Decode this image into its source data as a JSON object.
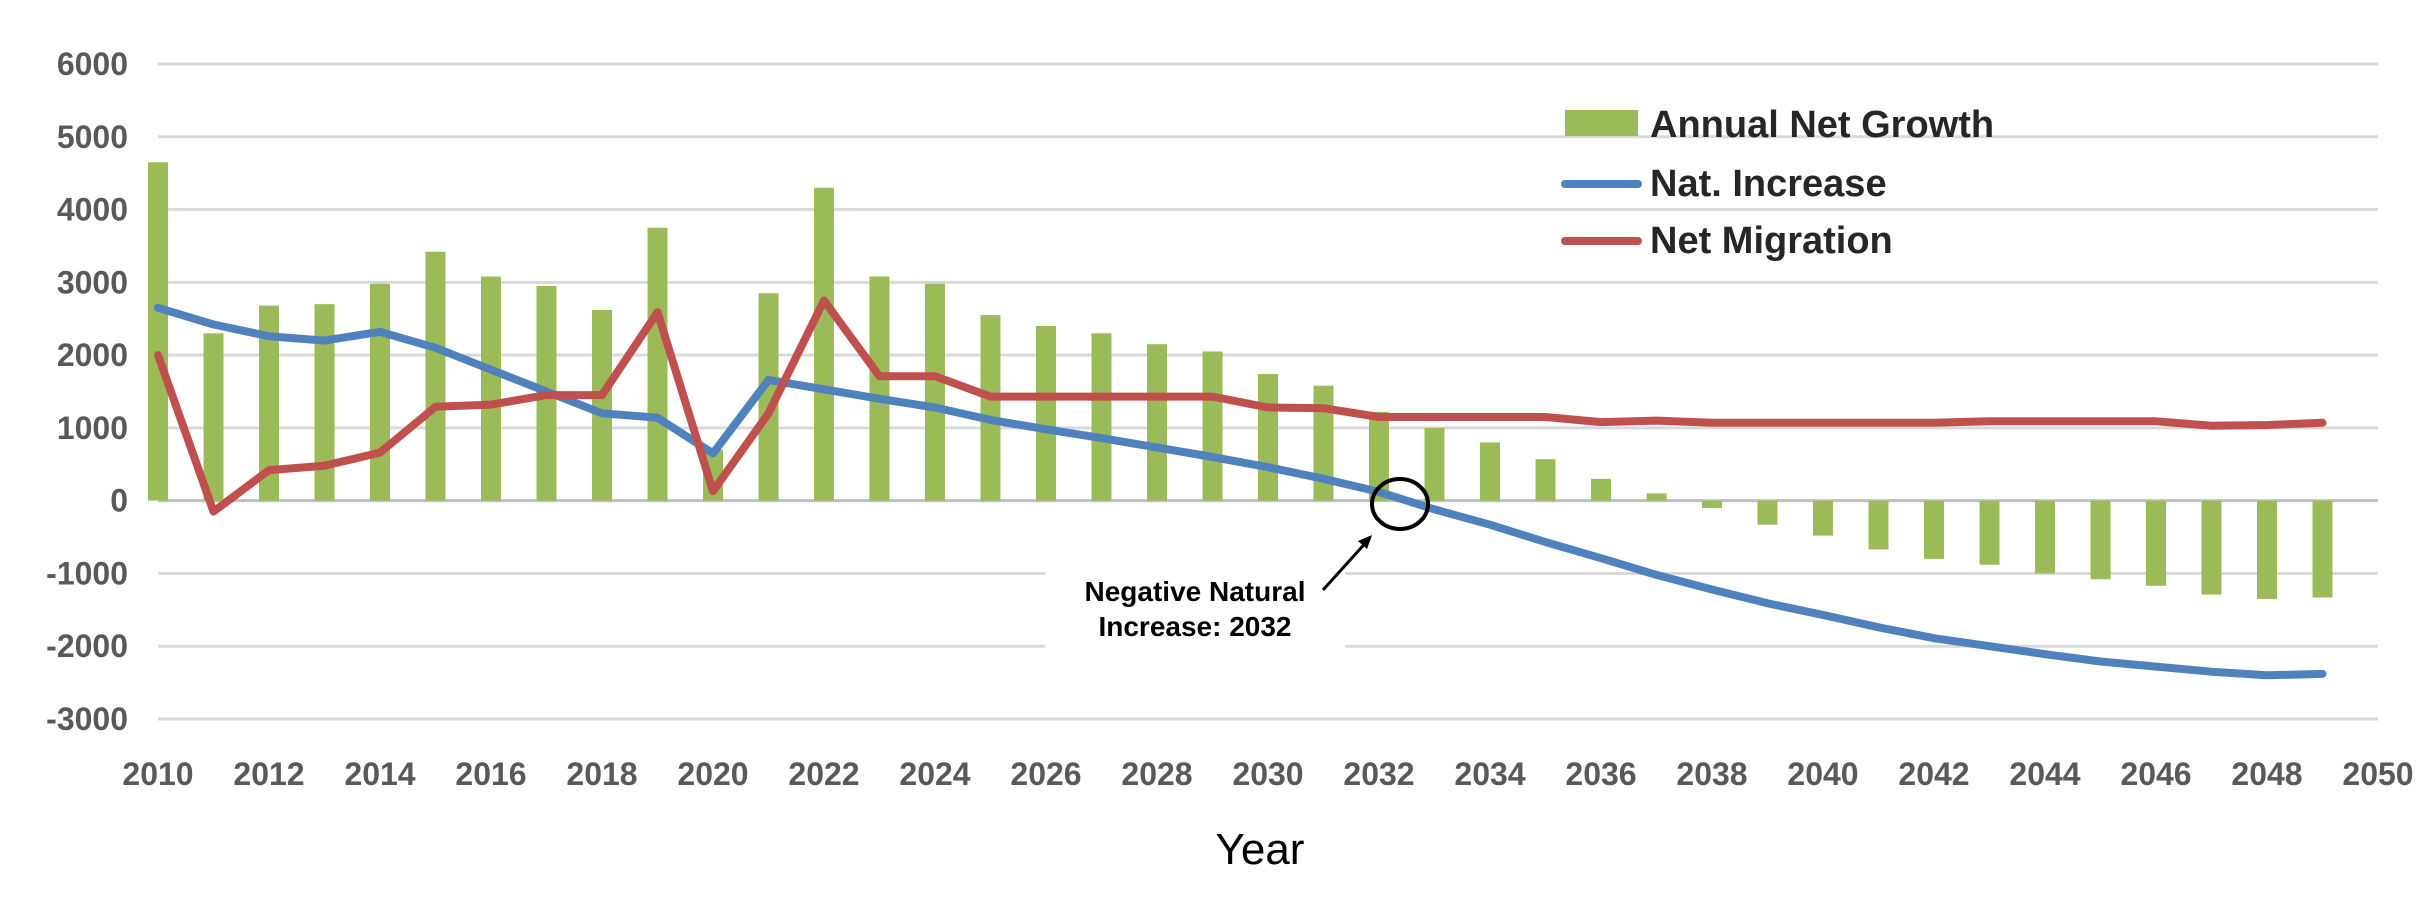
{
  "chart_data": {
    "type": "bar+line",
    "title": "",
    "xlabel": "Year",
    "ylabel": "",
    "ylim": [
      -3000,
      6000
    ],
    "yticks": [
      -3000,
      -2000,
      -1000,
      0,
      1000,
      2000,
      3000,
      4000,
      5000,
      6000
    ],
    "xlim": [
      2010,
      2050
    ],
    "xticks": [
      2010,
      2012,
      2014,
      2016,
      2018,
      2020,
      2022,
      2024,
      2026,
      2028,
      2030,
      2032,
      2034,
      2036,
      2038,
      2040,
      2042,
      2044,
      2046,
      2048,
      2050
    ],
    "grid": true,
    "legend_position": "top-right",
    "x": [
      2010,
      2011,
      2012,
      2013,
      2014,
      2015,
      2016,
      2017,
      2018,
      2019,
      2020,
      2021,
      2022,
      2023,
      2024,
      2025,
      2026,
      2027,
      2028,
      2029,
      2030,
      2031,
      2032,
      2033,
      2034,
      2035,
      2036,
      2037,
      2038,
      2039,
      2040,
      2041,
      2042,
      2043,
      2044,
      2045,
      2046,
      2047,
      2048,
      2049
    ],
    "series": [
      {
        "name": "Annual Net Growth",
        "kind": "bar",
        "color": "#9bbb59",
        "values": [
          4650,
          2300,
          2680,
          2700,
          2980,
          3420,
          3080,
          2950,
          2620,
          3750,
          700,
          2850,
          4300,
          3080,
          2980,
          2550,
          2400,
          2300,
          2150,
          2050,
          1740,
          1580,
          1220,
          1000,
          800,
          570,
          300,
          100,
          -100,
          -330,
          -480,
          -670,
          -800,
          -880,
          -1000,
          -1080,
          -1170,
          -1290,
          -1350,
          -1330
        ]
      },
      {
        "name": "Nat. Increase",
        "kind": "line",
        "color": "#4f81bd",
        "values": [
          2650,
          2420,
          2260,
          2200,
          2320,
          2100,
          1800,
          1500,
          1200,
          1140,
          650,
          1660,
          1530,
          1400,
          1280,
          1110,
          980,
          860,
          730,
          600,
          460,
          300,
          120,
          -120,
          -330,
          -570,
          -790,
          -1020,
          -1220,
          -1410,
          -1570,
          -1740,
          -1890,
          -2000,
          -2110,
          -2210,
          -2280,
          -2350,
          -2400,
          -2380
        ]
      },
      {
        "name": "Net Migration",
        "kind": "line",
        "color": "#c0504d",
        "values": [
          2000,
          -150,
          420,
          480,
          660,
          1290,
          1320,
          1450,
          1450,
          2590,
          130,
          1200,
          2750,
          1710,
          1710,
          1430,
          1430,
          1430,
          1430,
          1430,
          1280,
          1270,
          1150,
          1150,
          1150,
          1150,
          1080,
          1100,
          1070,
          1070,
          1070,
          1070,
          1070,
          1090,
          1090,
          1090,
          1090,
          1030,
          1040,
          1070
        ]
      }
    ],
    "annotations": [
      {
        "text_line1": "Negative Natural",
        "text_line2": "Increase: 2032",
        "x": 2032.4,
        "y": 0
      }
    ]
  }
}
